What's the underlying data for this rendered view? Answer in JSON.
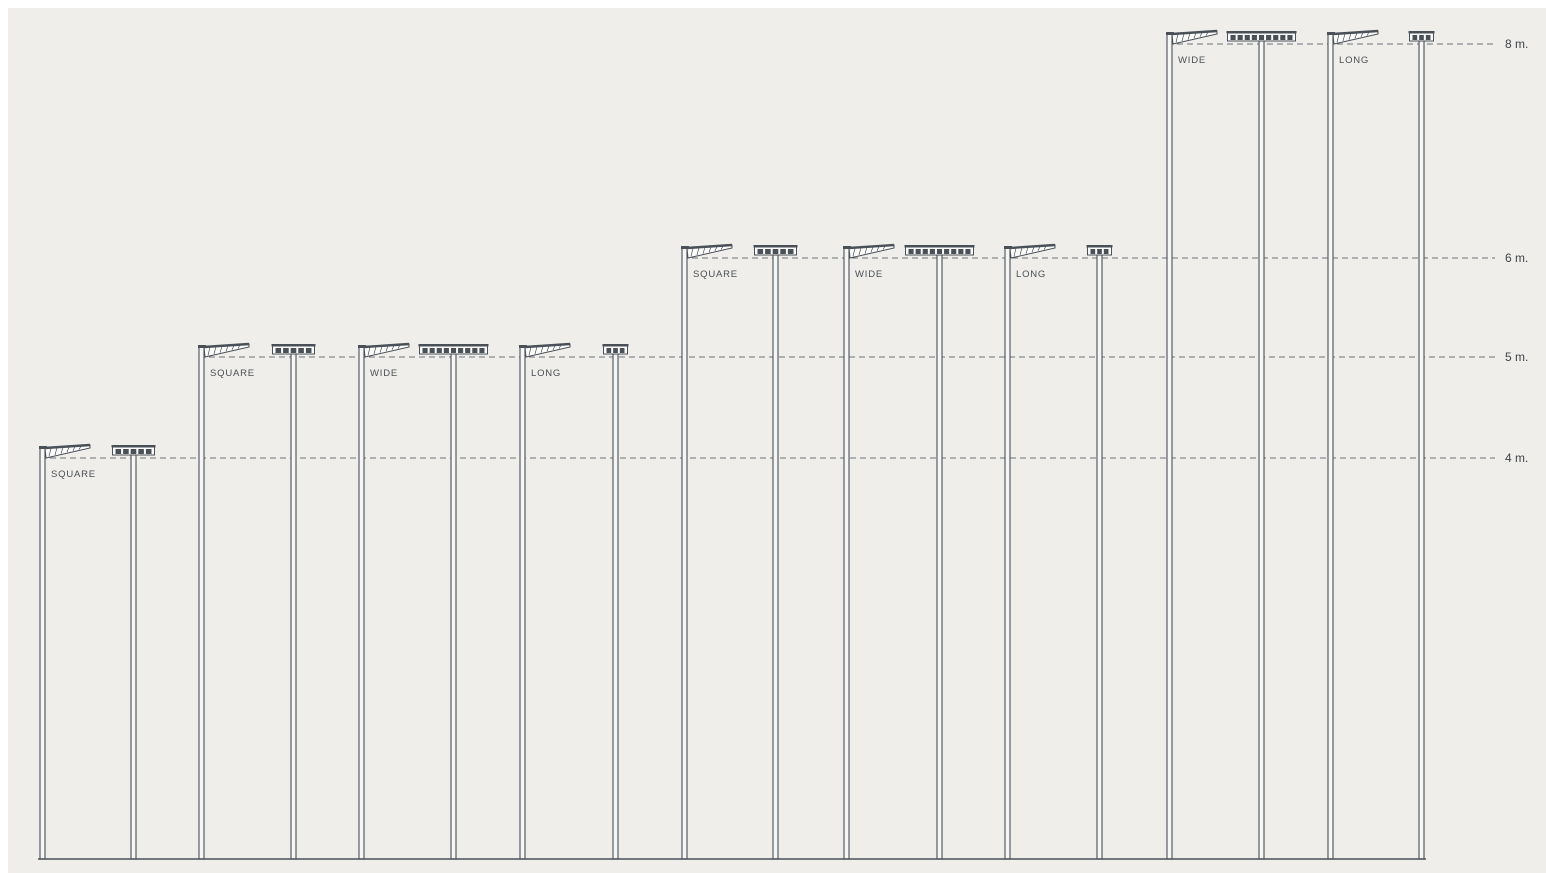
{
  "heights": [
    {
      "label": "8 m.",
      "value": 8
    },
    {
      "label": "6 m.",
      "value": 6
    },
    {
      "label": "5 m.",
      "value": 5
    },
    {
      "label": "4 m.",
      "value": 4
    }
  ],
  "poles": [
    {
      "height": 4,
      "variant": "SQUARE"
    },
    {
      "height": 5,
      "variant": "SQUARE"
    },
    {
      "height": 5,
      "variant": "WIDE"
    },
    {
      "height": 5,
      "variant": "LONG"
    },
    {
      "height": 6,
      "variant": "SQUARE"
    },
    {
      "height": 6,
      "variant": "WIDE"
    },
    {
      "height": 6,
      "variant": "LONG"
    },
    {
      "height": 8,
      "variant": "WIDE"
    },
    {
      "height": 8,
      "variant": "LONG"
    }
  ],
  "colors": {
    "background": "#efeeea",
    "line": "#4a5058",
    "dash": "#6f7378",
    "pole_fill": "#f6f6f4",
    "head_fill": "#fbfbfa"
  }
}
